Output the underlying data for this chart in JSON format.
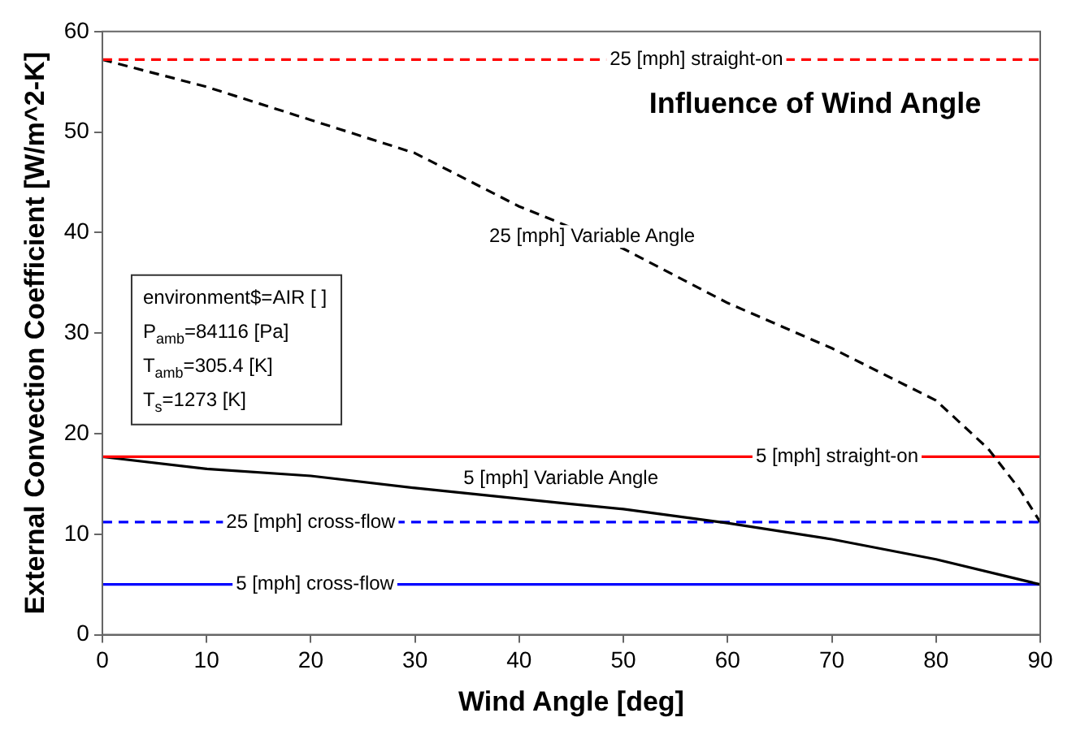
{
  "chart_data": {
    "type": "line",
    "title": "Influence of Wind Angle",
    "xlabel": "Wind Angle [deg]",
    "ylabel": "External Convection Coefficient [W/m^2-K]",
    "xlim": [
      0,
      90
    ],
    "ylim": [
      0,
      60
    ],
    "xticks": [
      0,
      10,
      20,
      30,
      40,
      50,
      60,
      70,
      80,
      90
    ],
    "yticks": [
      0,
      10,
      20,
      30,
      40,
      50,
      60
    ],
    "grid": false,
    "legend": false,
    "marker": "none",
    "series": [
      {
        "color": "#ff0000",
        "line_style": "dashed",
        "x": [
          0,
          90
        ],
        "values": [
          57.2,
          57.2
        ]
      },
      {
        "color": "#000000",
        "line_style": "dashed",
        "x": [
          0,
          10,
          20,
          30,
          40,
          50,
          60,
          70,
          80,
          85,
          88,
          90
        ],
        "values": [
          57.2,
          54.5,
          51.2,
          47.9,
          42.6,
          38.4,
          33,
          28.5,
          23.3,
          18.5,
          14.5,
          11.2
        ]
      },
      {
        "color": "#ff0000",
        "line_style": "solid",
        "x": [
          0,
          90
        ],
        "values": [
          17.7,
          17.7
        ]
      },
      {
        "color": "#000000",
        "line_style": "solid",
        "x": [
          0,
          10,
          20,
          30,
          44,
          50,
          60,
          70,
          80,
          90
        ],
        "values": [
          17.7,
          16.5,
          15.8,
          14.6,
          13.1,
          12.5,
          11.1,
          9.5,
          7.5,
          5
        ]
      },
      {
        "color": "#0000ff",
        "line_style": "dashed",
        "x": [
          0,
          90
        ],
        "values": [
          11.2,
          11.2
        ]
      },
      {
        "color": "#0000ff",
        "line_style": "solid",
        "x": [
          0,
          90
        ],
        "values": [
          5,
          5
        ]
      }
    ],
    "annotations": [
      {
        "text": "25 [mph] straight-on",
        "x": 57,
        "y": 57.2
      },
      {
        "text": "25 [mph] Variable Angle",
        "x": 47,
        "y": 39.6
      },
      {
        "text": "5 [mph] straight-on",
        "x": 70.5,
        "y": 17.7
      },
      {
        "text": "5 [mph] Variable Angle",
        "x": 44,
        "y": 13.1
      },
      {
        "text": "25 [mph] cross-flow",
        "x": 20,
        "y": 11.2
      },
      {
        "text": "5 [mph] cross-flow",
        "x": 20.4,
        "y": 5
      },
      "environment$=AIR [ ]",
      "P$_{amb}$=84116 [Pa]",
      "T$_{amb}$=305.4 [K]",
      "T$_{s}$=1273 [K]"
    ]
  }
}
